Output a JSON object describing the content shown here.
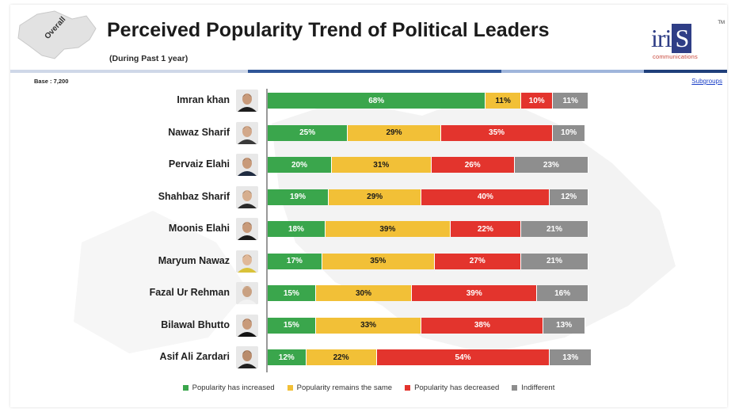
{
  "header": {
    "badge": "Overall",
    "title": "Perceived Popularity Trend of Political Leaders",
    "subtitle": "(During Past 1 year)",
    "base": "Base : 7,200",
    "subgroups_link": "Subgroups"
  },
  "logo": {
    "prefix": "iri",
    "box_letter": "S",
    "trademark": "TM",
    "tagline": "communications"
  },
  "colors": {
    "increased": "#3aa64c",
    "same": "#f2c037",
    "decreased": "#e3342d",
    "indifferent": "#8e8e8e",
    "divider": [
      "#cfd8e8",
      "#2f5597",
      "#9fb5db",
      "#1f3f7a"
    ]
  },
  "chart_data": {
    "type": "bar",
    "orientation": "horizontal",
    "stacked": true,
    "title": "Perceived Popularity Trend of Political Leaders",
    "categories": [
      "Imran khan",
      "Nawaz Sharif",
      "Pervaiz Elahi",
      "Shahbaz Sharif",
      "Moonis Elahi",
      "Maryum Nawaz",
      "Fazal Ur Rehman",
      "Bilawal Bhutto",
      "Asif Ali Zardari"
    ],
    "series": [
      {
        "name": "Popularity has increased",
        "key": "increased",
        "values": [
          68,
          25,
          20,
          19,
          18,
          17,
          15,
          15,
          12
        ]
      },
      {
        "name": "Popularity remains the same",
        "key": "same",
        "values": [
          11,
          29,
          31,
          29,
          39,
          35,
          30,
          33,
          22
        ]
      },
      {
        "name": "Popularity has decreased",
        "key": "decreased",
        "values": [
          10,
          35,
          26,
          40,
          22,
          27,
          39,
          38,
          54
        ]
      },
      {
        "name": "Indifferent",
        "key": "indifferent",
        "values": [
          11,
          10,
          23,
          12,
          21,
          21,
          16,
          13,
          13
        ]
      }
    ],
    "value_suffix": "%",
    "xlim": [
      0,
      100
    ],
    "legend_position": "bottom"
  }
}
